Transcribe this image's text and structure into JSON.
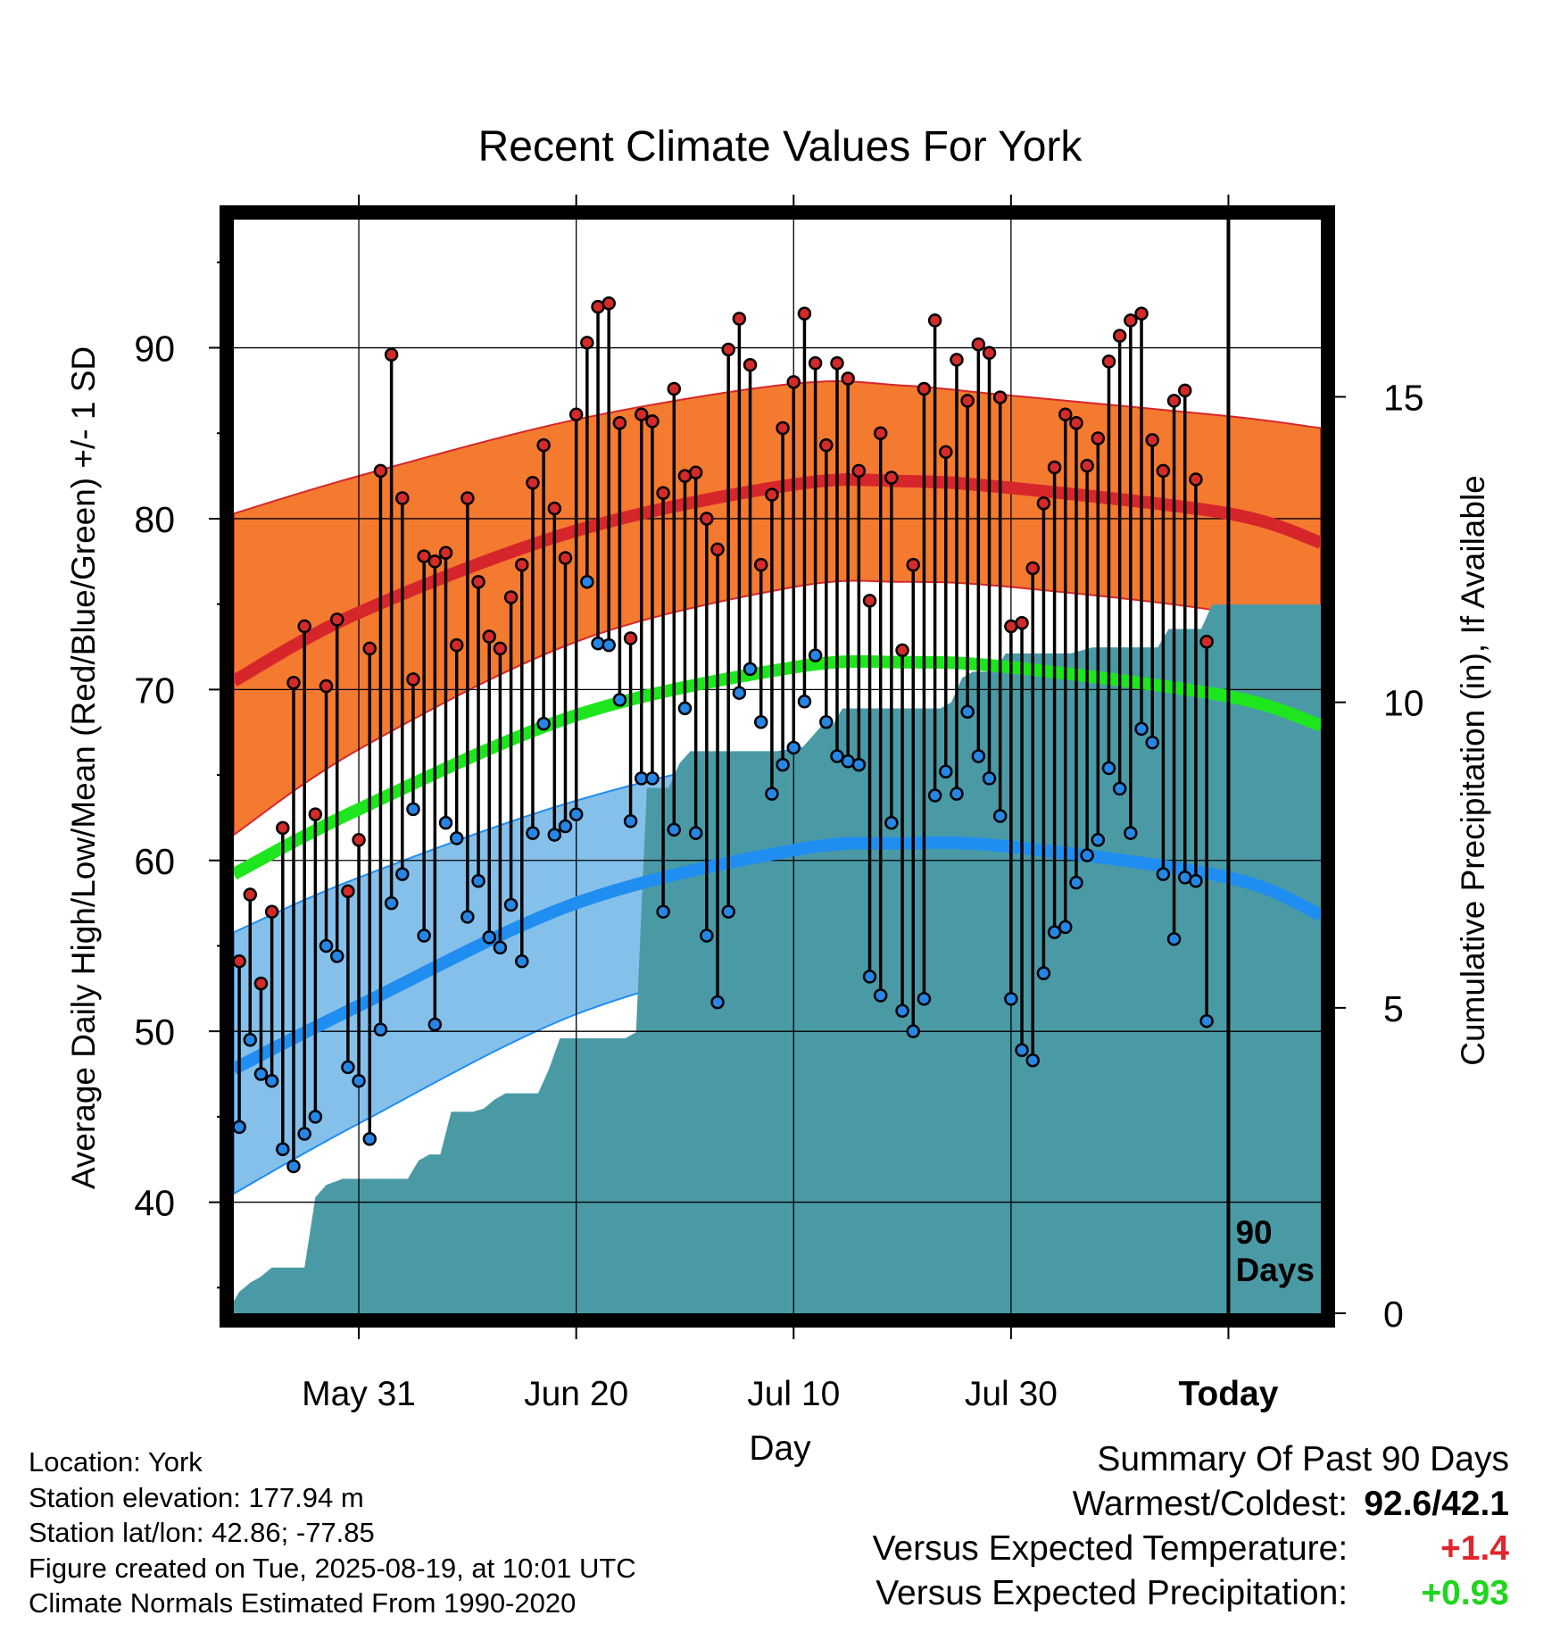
{
  "chart_data": {
    "type": "line",
    "title": "Recent Climate Values For York",
    "xlabel": "Day",
    "ylabel": "Average Daily High/Low/Mean (Red/Blue/Green) +/- 1 SD",
    "y2label": "Cumulative Precipitation (in), If Available",
    "x_ticks": [
      {
        "label": "May 31",
        "day": 10
      },
      {
        "label": "Jun 20",
        "day": 30
      },
      {
        "label": "Jul 10",
        "day": 50
      },
      {
        "label": "Jul 30",
        "day": 70
      },
      {
        "label": "Today",
        "day": 90
      }
    ],
    "x_range": [
      -1.5,
      98.5
    ],
    "ylim": [
      33.5,
      97.5
    ],
    "y_ticks": [
      40,
      50,
      60,
      70,
      80,
      90
    ],
    "y2lim": [
      0,
      17.9
    ],
    "y2_ticks": [
      0,
      5,
      10,
      15
    ],
    "marker_label": "90\nDays",
    "normals": {
      "high_mean": [
        {
          "day": -1.5,
          "value": 70.5
        },
        {
          "day": 10,
          "value": 74.5
        },
        {
          "day": 30,
          "value": 79.3
        },
        {
          "day": 50,
          "value": 82.0
        },
        {
          "day": 60,
          "value": 82.2
        },
        {
          "day": 70,
          "value": 81.8
        },
        {
          "day": 90,
          "value": 80.3
        },
        {
          "day": 98.5,
          "value": 78.6
        }
      ],
      "high_upper": [
        {
          "day": -1.5,
          "value": 80.3
        },
        {
          "day": 10,
          "value": 82.5
        },
        {
          "day": 30,
          "value": 85.8
        },
        {
          "day": 50,
          "value": 87.9
        },
        {
          "day": 60,
          "value": 87.8
        },
        {
          "day": 70,
          "value": 87.2
        },
        {
          "day": 90,
          "value": 86.0
        },
        {
          "day": 98.5,
          "value": 85.3
        }
      ],
      "high_lower": [
        {
          "day": -1.5,
          "value": 61.5
        },
        {
          "day": 10,
          "value": 66.5
        },
        {
          "day": 30,
          "value": 72.8
        },
        {
          "day": 50,
          "value": 76.0
        },
        {
          "day": 60,
          "value": 76.3
        },
        {
          "day": 70,
          "value": 76.0
        },
        {
          "day": 90,
          "value": 74.5
        },
        {
          "day": 98.5,
          "value": 72.6
        }
      ],
      "mean": [
        {
          "day": -1.5,
          "value": 59.2
        },
        {
          "day": 10,
          "value": 63.0
        },
        {
          "day": 30,
          "value": 68.5
        },
        {
          "day": 50,
          "value": 71.3
        },
        {
          "day": 60,
          "value": 71.6
        },
        {
          "day": 70,
          "value": 71.3
        },
        {
          "day": 90,
          "value": 69.6
        },
        {
          "day": 98.5,
          "value": 67.9
        }
      ],
      "low_mean": [
        {
          "day": -1.5,
          "value": 47.8
        },
        {
          "day": 10,
          "value": 51.5
        },
        {
          "day": 30,
          "value": 57.5
        },
        {
          "day": 50,
          "value": 60.6
        },
        {
          "day": 60,
          "value": 61.0
        },
        {
          "day": 70,
          "value": 60.8
        },
        {
          "day": 90,
          "value": 59.0
        },
        {
          "day": 98.5,
          "value": 56.8
        }
      ],
      "low_upper": [
        {
          "day": -1.5,
          "value": 55.8
        },
        {
          "day": 10,
          "value": 59.0
        },
        {
          "day": 30,
          "value": 63.5
        },
        {
          "day": 50,
          "value": 66.5
        },
        {
          "day": 60,
          "value": 66.7
        },
        {
          "day": 70,
          "value": 66.4
        },
        {
          "day": 90,
          "value": 65.0
        },
        {
          "day": 98.5,
          "value": 63.7
        }
      ],
      "low_lower": [
        {
          "day": -1.5,
          "value": 40.5
        },
        {
          "day": 10,
          "value": 44.6
        },
        {
          "day": 30,
          "value": 51.0
        },
        {
          "day": 50,
          "value": 54.5
        },
        {
          "day": 60,
          "value": 55.1
        },
        {
          "day": 70,
          "value": 55.0
        },
        {
          "day": 90,
          "value": 53.2
        },
        {
          "day": 98.5,
          "value": 50.8
        }
      ]
    },
    "daily": {
      "start_day": -1,
      "highs": [
        54.1,
        58.0,
        52.8,
        57.0,
        61.9,
        70.4,
        73.7,
        62.7,
        70.2,
        74.1,
        58.2,
        61.2,
        72.4,
        82.8,
        89.6,
        81.2,
        70.6,
        77.8,
        77.5,
        78.0,
        72.6,
        81.2,
        76.3,
        73.1,
        72.4,
        75.4,
        77.3,
        82.1,
        84.3,
        80.6,
        77.7,
        86.1,
        90.3,
        92.4,
        92.6,
        85.6,
        73.0,
        86.1,
        85.7,
        81.5,
        87.6,
        82.5,
        82.7,
        80.0,
        78.2,
        89.9,
        91.7,
        89.0,
        77.3,
        81.4,
        85.3,
        88.0,
        92.0,
        89.1,
        84.3,
        89.1,
        88.2,
        82.8,
        75.2,
        85.0,
        82.4,
        72.3,
        77.3,
        87.6,
        91.6,
        83.9,
        89.3,
        86.9,
        90.2,
        89.7,
        87.1,
        73.7,
        73.9,
        77.1,
        80.9,
        83.0,
        86.1,
        85.6,
        83.1,
        84.7,
        89.2,
        90.7,
        91.6,
        92.0,
        84.6,
        82.8,
        86.9,
        87.5,
        82.3,
        72.8
      ],
      "lows": [
        44.4,
        49.5,
        47.5,
        47.1,
        43.1,
        42.1,
        44.0,
        45.0,
        55.0,
        54.4,
        47.9,
        47.1,
        43.7,
        50.1,
        57.5,
        59.2,
        63.0,
        55.6,
        50.4,
        62.2,
        61.3,
        56.7,
        58.8,
        55.5,
        54.9,
        57.4,
        54.1,
        61.6,
        68.0,
        61.5,
        62.0,
        62.7,
        76.3,
        72.7,
        72.6,
        69.4,
        62.3,
        64.8,
        64.8,
        57.0,
        61.8,
        68.9,
        61.6,
        55.6,
        51.7,
        57.0,
        69.8,
        71.2,
        68.1,
        63.9,
        65.6,
        66.6,
        69.3,
        72.0,
        68.1,
        66.1,
        65.8,
        65.6,
        53.2,
        52.1,
        62.2,
        51.2,
        50.0,
        51.9,
        63.8,
        65.2,
        63.9,
        68.7,
        66.1,
        64.8,
        62.6,
        51.9,
        48.9,
        48.3,
        53.4,
        55.8,
        56.1,
        58.7,
        60.3,
        61.2,
        65.4,
        64.2,
        61.6,
        67.7,
        66.9,
        59.2,
        55.4,
        59.0,
        58.8,
        50.6
      ]
    },
    "cumulative_precip": [
      {
        "day": -1.5,
        "value": 0.2
      },
      {
        "day": -1.0,
        "value": 0.35
      },
      {
        "day": 0.0,
        "value": 0.5
      },
      {
        "day": 1.0,
        "value": 0.6
      },
      {
        "day": 2.0,
        "value": 0.75
      },
      {
        "day": 5.0,
        "value": 0.75
      },
      {
        "day": 6.0,
        "value": 1.9
      },
      {
        "day": 7.0,
        "value": 2.1
      },
      {
        "day": 8.5,
        "value": 2.2
      },
      {
        "day": 11.5,
        "value": 2.2
      },
      {
        "day": 13.5,
        "value": 2.2
      },
      {
        "day": 14.5,
        "value": 2.2
      },
      {
        "day": 15.5,
        "value": 2.5
      },
      {
        "day": 16.5,
        "value": 2.6
      },
      {
        "day": 17.5,
        "value": 2.6
      },
      {
        "day": 18.5,
        "value": 3.3
      },
      {
        "day": 20.5,
        "value": 3.3
      },
      {
        "day": 21.5,
        "value": 3.35
      },
      {
        "day": 22.5,
        "value": 3.5
      },
      {
        "day": 23.5,
        "value": 3.6
      },
      {
        "day": 25.5,
        "value": 3.6
      },
      {
        "day": 26.5,
        "value": 3.6
      },
      {
        "day": 27.5,
        "value": 4.0
      },
      {
        "day": 28.5,
        "value": 4.5
      },
      {
        "day": 29.5,
        "value": 4.5
      },
      {
        "day": 34.5,
        "value": 4.5
      },
      {
        "day": 35.5,
        "value": 4.6
      },
      {
        "day": 36.5,
        "value": 8.6
      },
      {
        "day": 38.5,
        "value": 8.6
      },
      {
        "day": 39.5,
        "value": 9.0
      },
      {
        "day": 40.5,
        "value": 9.2
      },
      {
        "day": 49.5,
        "value": 9.2
      },
      {
        "day": 50.5,
        "value": 9.2
      },
      {
        "day": 51.5,
        "value": 9.4
      },
      {
        "day": 52.5,
        "value": 9.6
      },
      {
        "day": 53.5,
        "value": 9.6
      },
      {
        "day": 54.5,
        "value": 9.9
      },
      {
        "day": 59.5,
        "value": 9.9
      },
      {
        "day": 62.5,
        "value": 9.9
      },
      {
        "day": 63.5,
        "value": 9.9
      },
      {
        "day": 64.5,
        "value": 10.0
      },
      {
        "day": 65.5,
        "value": 10.4
      },
      {
        "day": 66.5,
        "value": 10.5
      },
      {
        "day": 68.5,
        "value": 10.5
      },
      {
        "day": 69.5,
        "value": 10.8
      },
      {
        "day": 70.5,
        "value": 10.8
      },
      {
        "day": 72.5,
        "value": 10.8
      },
      {
        "day": 75.5,
        "value": 10.8
      },
      {
        "day": 77.5,
        "value": 10.9
      },
      {
        "day": 83.5,
        "value": 10.9
      },
      {
        "day": 84.5,
        "value": 11.2
      },
      {
        "day": 85.5,
        "value": 11.2
      },
      {
        "day": 87.5,
        "value": 11.2
      },
      {
        "day": 88.5,
        "value": 11.6
      },
      {
        "day": 98.5,
        "value": 11.6
      }
    ],
    "colors": {
      "high_band": "#f47a30",
      "high_mean": "#d7262b",
      "mean": "#1ee61e",
      "low_band": "#85c0ea",
      "low_mean": "#1f8ef0",
      "precip": "#4a9aa6",
      "high_marker": "#d42a2a",
      "low_marker": "#2686e6"
    },
    "grid": true
  },
  "info": {
    "location": "Location: York",
    "elevation": "Station elevation: 177.94 m",
    "latlon": "Station lat/lon: 42.86; -77.85",
    "created": "Figure created on Tue, 2025-08-19, at 10:01 UTC",
    "normals": "Climate Normals Estimated From 1990-2020"
  },
  "summary": {
    "title": "Summary Of Past 90 Days",
    "warmest_coldest_label": "Warmest/Coldest:",
    "warmest_coldest_value": "92.6/42.1",
    "temp_label": "Versus Expected Temperature:",
    "temp_value": "+1.4",
    "precip_label": "Versus Expected Precipitation:",
    "precip_value": "+0.93"
  }
}
